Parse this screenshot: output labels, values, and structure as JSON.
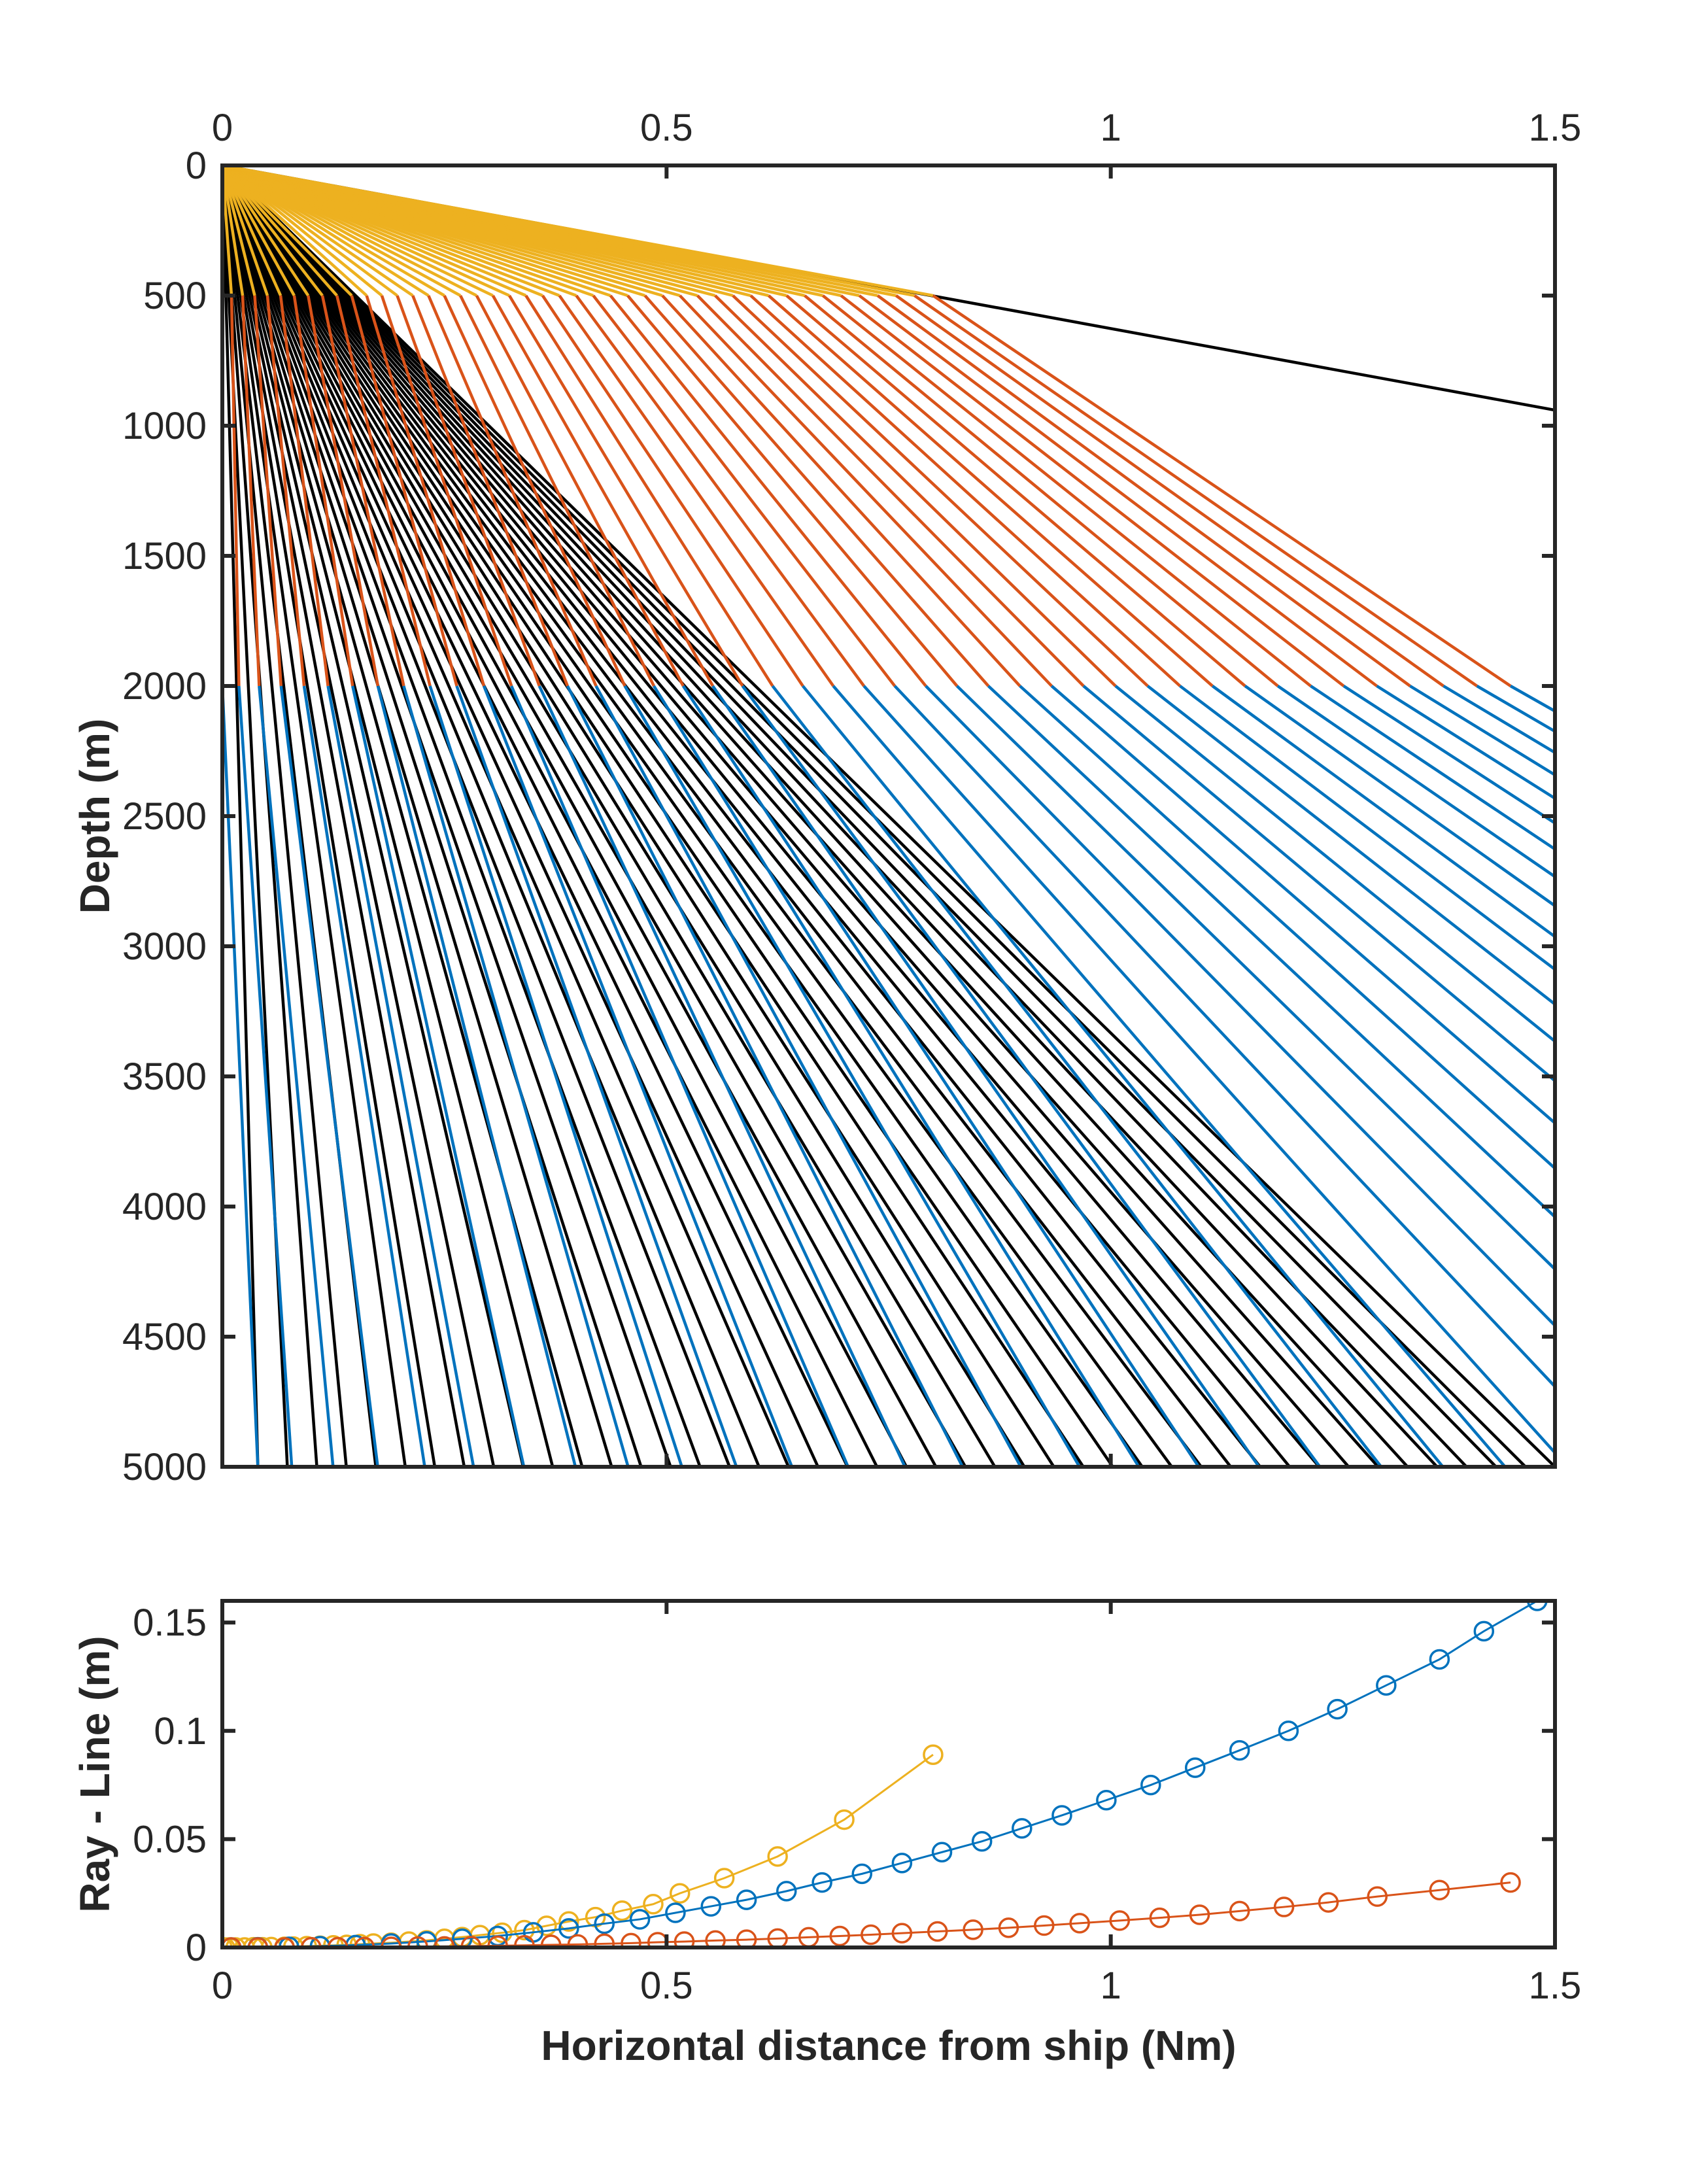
{
  "colors": {
    "background": "#ffffff",
    "axes": "#262626",
    "blue": "#0072BD",
    "orange": "#D95319",
    "yellow": "#EDB120",
    "black": "#000000"
  },
  "chart_data": [
    {
      "type": "line",
      "title": "",
      "xlabel": "",
      "ylabel": "Depth (m)",
      "xlim": [
        0,
        1.5
      ],
      "ylim": [
        0,
        5000
      ],
      "y_reversed": true,
      "x_axis_location": "top",
      "grid": false,
      "xticks": [
        0,
        0.5,
        1,
        1.5
      ],
      "xtick_labels": [
        "0",
        "0.5",
        "1",
        "1.5"
      ],
      "yticks": [
        0,
        500,
        1000,
        1500,
        2000,
        2500,
        3000,
        3500,
        4000,
        4500,
        5000
      ],
      "ytick_labels": [
        "0",
        "500",
        "1000",
        "1500",
        "2000",
        "2500",
        "3000",
        "3500",
        "4000",
        "4500",
        "5000"
      ],
      "layer_boundaries_m": [
        500,
        2000
      ],
      "ray_fan": {
        "count": 45,
        "origin": [
          0,
          0
        ],
        "layers": [
          {
            "depth_range": [
              0,
              500
            ],
            "color": "#EDB120",
            "x_at_layer_bottom": [
              0.0,
              0.8
            ]
          },
          {
            "depth_range": [
              500,
              2000
            ],
            "color": "#D95319",
            "x_at_layer_bottom": [
              0.0,
              1.45
            ]
          },
          {
            "depth_range": [
              2000,
              5000
            ],
            "color": "#0072BD",
            "x_at_layer_bottom": [
              0.04,
              1.48
            ]
          }
        ],
        "straight_lines": {
          "color": "#000000",
          "x_at_depth_5000": [
            0.04,
            1.5
          ],
          "depth_at_x_1_5_for_flattest": 940
        }
      }
    },
    {
      "type": "line",
      "title": "",
      "xlabel": "Horizontal distance from ship (Nm)",
      "ylabel": "Ray - Line (m)",
      "xlim": [
        0,
        1.5
      ],
      "ylim": [
        0,
        0.16
      ],
      "grid": false,
      "xticks": [
        0,
        0.5,
        1,
        1.5
      ],
      "xtick_labels": [
        "0",
        "0.5",
        "1",
        "1.5"
      ],
      "yticks": [
        0,
        0.05,
        0.1,
        0.15
      ],
      "ytick_labels": [
        "0",
        "0.05",
        "0.1",
        "0.15"
      ],
      "series": [
        {
          "color": "#EDB120",
          "x": [
            0.8,
            0.7,
            0.625,
            0.565,
            0.515,
            0.485,
            0.45,
            0.42,
            0.39,
            0.365,
            0.34,
            0.315,
            0.29,
            0.27,
            0.25,
            0.23,
            0.21,
            0.19,
            0.17,
            0.155,
            0.14,
            0.125,
            0.11,
            0.095,
            0.08,
            0.07,
            0.055,
            0.045,
            0.035,
            0.025,
            0.015,
            0.008,
            0.003,
            0.0
          ],
          "y": [
            0.089,
            0.059,
            0.042,
            0.032,
            0.025,
            0.02,
            0.017,
            0.014,
            0.012,
            0.01,
            0.008,
            0.0068,
            0.0057,
            0.0048,
            0.004,
            0.0033,
            0.0027,
            0.0022,
            0.0018,
            0.0015,
            0.0012,
            0.001,
            0.0008,
            0.0006,
            0.0004,
            0.0003,
            0.0002,
            0.0001,
            0.0001,
            0.0,
            0.0,
            0.0,
            0.0,
            0.0
          ]
        },
        {
          "color": "#0072BD",
          "x": [
            1.48,
            1.42,
            1.37,
            1.31,
            1.255,
            1.2,
            1.145,
            1.095,
            1.045,
            0.995,
            0.945,
            0.9,
            0.855,
            0.81,
            0.765,
            0.72,
            0.675,
            0.635,
            0.59,
            0.55,
            0.51,
            0.47,
            0.43,
            0.39,
            0.35,
            0.31,
            0.27,
            0.23,
            0.19,
            0.15,
            0.11,
            0.075,
            0.04,
            0.01
          ],
          "y": [
            0.16,
            0.146,
            0.133,
            0.121,
            0.11,
            0.1,
            0.091,
            0.083,
            0.075,
            0.068,
            0.061,
            0.055,
            0.049,
            0.044,
            0.039,
            0.034,
            0.03,
            0.026,
            0.022,
            0.019,
            0.016,
            0.013,
            0.011,
            0.0088,
            0.007,
            0.0053,
            0.004,
            0.0028,
            0.0018,
            0.0011,
            0.0006,
            0.0003,
            0.0001,
            0.0
          ]
        },
        {
          "color": "#D95319",
          "x": [
            1.45,
            1.37,
            1.3,
            1.245,
            1.195,
            1.145,
            1.1,
            1.055,
            1.01,
            0.965,
            0.925,
            0.885,
            0.845,
            0.805,
            0.765,
            0.73,
            0.695,
            0.66,
            0.625,
            0.59,
            0.555,
            0.52,
            0.49,
            0.46,
            0.43,
            0.4,
            0.37,
            0.34,
            0.31,
            0.28,
            0.25,
            0.22,
            0.19,
            0.16,
            0.13,
            0.1,
            0.07,
            0.04,
            0.01
          ],
          "y": [
            0.03,
            0.0265,
            0.0235,
            0.0208,
            0.0187,
            0.0168,
            0.0151,
            0.0137,
            0.0124,
            0.0112,
            0.0101,
            0.0091,
            0.0082,
            0.0074,
            0.0066,
            0.0059,
            0.0053,
            0.0047,
            0.0041,
            0.0036,
            0.0032,
            0.0027,
            0.0024,
            0.002,
            0.0017,
            0.0014,
            0.0012,
            0.001,
            0.0008,
            0.0006,
            0.0005,
            0.0004,
            0.0003,
            0.0002,
            0.0001,
            0.0001,
            0.0,
            0.0,
            0.0
          ]
        }
      ],
      "marker": "circle-open"
    }
  ]
}
